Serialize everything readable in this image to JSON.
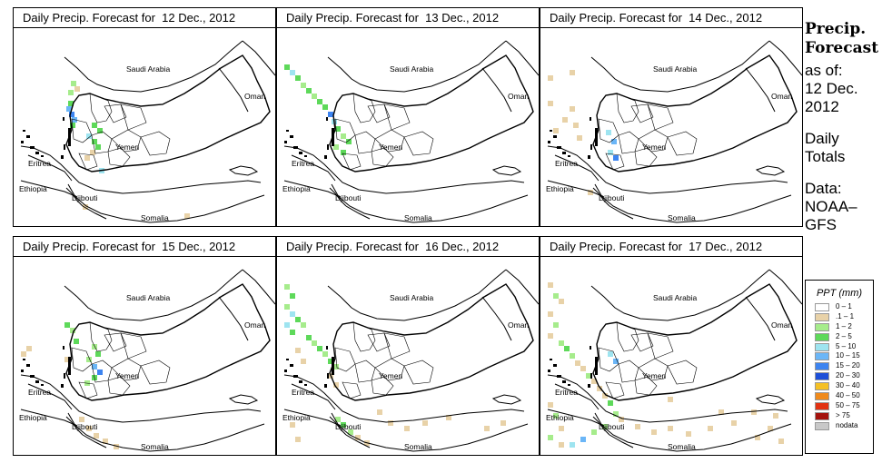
{
  "panels": [
    {
      "title": "Daily Precip. Forecast for  12 Dec., 2012",
      "cells": [
        [
          63,
          58,
          "c1_2"
        ],
        [
          67,
          64,
          "c_1_1"
        ],
        [
          60,
          68,
          "c1_2"
        ],
        [
          60,
          80,
          "c2_5"
        ],
        [
          58,
          86,
          "c10_15"
        ],
        [
          61,
          92,
          "c15_20"
        ],
        [
          64,
          98,
          "c10_15"
        ],
        [
          62,
          104,
          "c2_5"
        ],
        [
          86,
          104,
          "c2_5"
        ],
        [
          92,
          110,
          "c2_5"
        ],
        [
          80,
          116,
          "c5_10"
        ],
        [
          86,
          122,
          "c2_5"
        ],
        [
          90,
          128,
          "c2_5"
        ],
        [
          84,
          134,
          "c_1_1"
        ],
        [
          78,
          140,
          "c_1_1"
        ],
        [
          94,
          154,
          "c5_10"
        ],
        [
          76,
          194,
          "c_1_1"
        ],
        [
          188,
          204,
          "c_1_1"
        ]
      ]
    },
    {
      "title": "Daily Precip. Forecast for  13 Dec., 2012",
      "cells": [
        [
          8,
          40,
          "c2_5"
        ],
        [
          14,
          46,
          "c5_10"
        ],
        [
          20,
          52,
          "c2_5"
        ],
        [
          26,
          60,
          "c1_2"
        ],
        [
          32,
          66,
          "c2_5"
        ],
        [
          38,
          72,
          "c1_2"
        ],
        [
          44,
          78,
          "c2_5"
        ],
        [
          50,
          84,
          "c2_5"
        ],
        [
          56,
          92,
          "c15_20"
        ],
        [
          60,
          100,
          "c5_10"
        ],
        [
          64,
          108,
          "c2_5"
        ],
        [
          70,
          116,
          "c1_2"
        ],
        [
          76,
          122,
          "c2_5"
        ],
        [
          62,
          128,
          "c1_2"
        ],
        [
          70,
          134,
          "c2_5"
        ]
      ]
    },
    {
      "title": "Daily Precip. Forecast for  14 Dec., 2012",
      "cells": [
        [
          8,
          52,
          "c_1_1"
        ],
        [
          32,
          46,
          "c_1_1"
        ],
        [
          8,
          80,
          "c_1_1"
        ],
        [
          14,
          110,
          "c_1_1"
        ],
        [
          24,
          98,
          "c_1_1"
        ],
        [
          32,
          86,
          "c_1_1"
        ],
        [
          36,
          104,
          "c_1_1"
        ],
        [
          40,
          118,
          "c_1_1"
        ],
        [
          72,
          112,
          "c5_10"
        ],
        [
          78,
          122,
          "c10_15"
        ],
        [
          74,
          134,
          "c5_10"
        ],
        [
          80,
          140,
          "c15_20"
        ],
        [
          52,
          178,
          "c_1_1"
        ]
      ]
    },
    {
      "title": "Daily Precip. Forecast for  15 Dec., 2012",
      "cells": [
        [
          56,
          72,
          "c2_5"
        ],
        [
          62,
          78,
          "c1_2"
        ],
        [
          66,
          90,
          "c2_5"
        ],
        [
          86,
          96,
          "c1_2"
        ],
        [
          90,
          104,
          "c2_5"
        ],
        [
          80,
          110,
          "c1_2"
        ],
        [
          86,
          118,
          "c10_15"
        ],
        [
          92,
          124,
          "c15_20"
        ],
        [
          86,
          130,
          "c2_5"
        ],
        [
          78,
          136,
          "c1_2"
        ],
        [
          14,
          98,
          "c_1_1"
        ],
        [
          8,
          104,
          "c_1_1"
        ],
        [
          56,
          110,
          "c_1_1"
        ],
        [
          72,
          176,
          "c_1_1"
        ],
        [
          80,
          186,
          "c_1_1"
        ],
        [
          88,
          194,
          "c_1_1"
        ],
        [
          98,
          200,
          "c_1_1"
        ],
        [
          110,
          206,
          "c_1_1"
        ]
      ]
    },
    {
      "title": "Daily Precip. Forecast for  16 Dec., 2012",
      "cells": [
        [
          8,
          30,
          "c1_2"
        ],
        [
          14,
          40,
          "c2_5"
        ],
        [
          8,
          52,
          "c1_2"
        ],
        [
          14,
          60,
          "c5_10"
        ],
        [
          20,
          66,
          "c2_5"
        ],
        [
          8,
          72,
          "c5_10"
        ],
        [
          14,
          80,
          "c2_5"
        ],
        [
          26,
          72,
          "c1_2"
        ],
        [
          32,
          86,
          "c2_5"
        ],
        [
          38,
          92,
          "c1_2"
        ],
        [
          44,
          98,
          "c2_5"
        ],
        [
          50,
          104,
          "c1_2"
        ],
        [
          56,
          112,
          "c2_5"
        ],
        [
          62,
          118,
          "c1_2"
        ],
        [
          20,
          100,
          "c_1_1"
        ],
        [
          26,
          112,
          "c_1_1"
        ],
        [
          56,
          128,
          "c_1_1"
        ],
        [
          62,
          138,
          "c_1_1"
        ],
        [
          122,
          180,
          "c_1_1"
        ],
        [
          140,
          186,
          "c_1_1"
        ],
        [
          160,
          180,
          "c_1_1"
        ],
        [
          186,
          174,
          "c_1_1"
        ],
        [
          110,
          168,
          "c_1_1"
        ],
        [
          64,
          176,
          "c1_2"
        ],
        [
          70,
          182,
          "c2_5"
        ],
        [
          78,
          190,
          "c1_2"
        ],
        [
          86,
          196,
          "c_1_1"
        ],
        [
          96,
          202,
          "c_1_1"
        ],
        [
          14,
          182,
          "c_1_1"
        ],
        [
          20,
          198,
          "c_1_1"
        ],
        [
          228,
          186,
          "c_1_1"
        ],
        [
          246,
          180,
          "c_1_1"
        ]
      ]
    },
    {
      "title": "Daily Precip. Forecast for  17 Dec., 2012",
      "cells": [
        [
          8,
          28,
          "c_1_1"
        ],
        [
          14,
          40,
          "c1_2"
        ],
        [
          20,
          46,
          "c_1_1"
        ],
        [
          8,
          60,
          "c_1_1"
        ],
        [
          14,
          72,
          "c1_2"
        ],
        [
          8,
          84,
          "c_1_1"
        ],
        [
          20,
          92,
          "c1_2"
        ],
        [
          26,
          98,
          "c2_5"
        ],
        [
          32,
          106,
          "c1_2"
        ],
        [
          38,
          114,
          "c_1_1"
        ],
        [
          44,
          120,
          "c_1_1"
        ],
        [
          50,
          128,
          "c1_2"
        ],
        [
          56,
          134,
          "c_1_1"
        ],
        [
          62,
          142,
          "c_1_1"
        ],
        [
          68,
          150,
          "c_1_1"
        ],
        [
          74,
          158,
          "c2_5"
        ],
        [
          80,
          170,
          "c1_2"
        ],
        [
          74,
          104,
          "c5_10"
        ],
        [
          80,
          112,
          "c10_15"
        ],
        [
          8,
          160,
          "c_1_1"
        ],
        [
          14,
          172,
          "c1_2"
        ],
        [
          20,
          186,
          "c_1_1"
        ],
        [
          8,
          196,
          "c1_2"
        ],
        [
          20,
          204,
          "c_1_1"
        ],
        [
          32,
          204,
          "c5_10"
        ],
        [
          44,
          198,
          "c10_15"
        ],
        [
          56,
          190,
          "c1_2"
        ],
        [
          68,
          184,
          "c1_2"
        ],
        [
          86,
          176,
          "c_1_1"
        ],
        [
          104,
          184,
          "c_1_1"
        ],
        [
          122,
          190,
          "c_1_1"
        ],
        [
          140,
          186,
          "c_1_1"
        ],
        [
          160,
          192,
          "c_1_1"
        ],
        [
          184,
          186,
          "c_1_1"
        ],
        [
          210,
          180,
          "c_1_1"
        ],
        [
          236,
          196,
          "c_1_1"
        ],
        [
          250,
          186,
          "c_1_1"
        ],
        [
          262,
          200,
          "c_1_1"
        ],
        [
          140,
          154,
          "c_1_1"
        ],
        [
          196,
          168,
          "c_1_1"
        ],
        [
          232,
          168,
          "c_1_1"
        ],
        [
          256,
          172,
          "c_1_1"
        ]
      ]
    }
  ],
  "places": {
    "saudi": "Saudi Arabia",
    "oman": "Oman",
    "yemen": "Yemen",
    "eritrea": "Eritrea",
    "ethiopia": "Ethiopia",
    "djibouti": "Djibouti",
    "somalia": "Somalia"
  },
  "side": {
    "title_line1": "Precip.",
    "title_line2": "Forecast",
    "asof": "as of:",
    "date_line1": "12 Dec.",
    "date_line2": "2012",
    "totals_line1": "Daily",
    "totals_line2": "Totals",
    "data_line1": "Data:",
    "data_line2": "NOAA–",
    "data_line3": "GFS"
  },
  "legend": {
    "title": "PPT (mm)",
    "items": [
      {
        "label": "0 – 1",
        "color": "#ffffff"
      },
      {
        "label": ".1 – 1",
        "color": "#e8d2a8"
      },
      {
        "label": "1 – 2",
        "color": "#a6ec8c"
      },
      {
        "label": "2 – 5",
        "color": "#5ed95a"
      },
      {
        "label": "5 – 10",
        "color": "#9ee4f0"
      },
      {
        "label": "10 – 15",
        "color": "#6bb6f7"
      },
      {
        "label": "15 – 20",
        "color": "#3d84f0"
      },
      {
        "label": "20 – 30",
        "color": "#1d4fd8"
      },
      {
        "label": "30 – 40",
        "color": "#f5c023"
      },
      {
        "label": "40 – 50",
        "color": "#f08a1b"
      },
      {
        "label": "50 – 75",
        "color": "#e23212"
      },
      {
        "label": "> 75",
        "color": "#a4120c"
      },
      {
        "label": "nodata",
        "color": "#c8c8c8"
      }
    ]
  },
  "cell_colors": {
    "c_1_1": "#e8d2a8",
    "c1_2": "#a6ec8c",
    "c2_5": "#5ed95a",
    "c5_10": "#9ee4f0",
    "c10_15": "#6bb6f7",
    "c15_20": "#3d84f0"
  }
}
